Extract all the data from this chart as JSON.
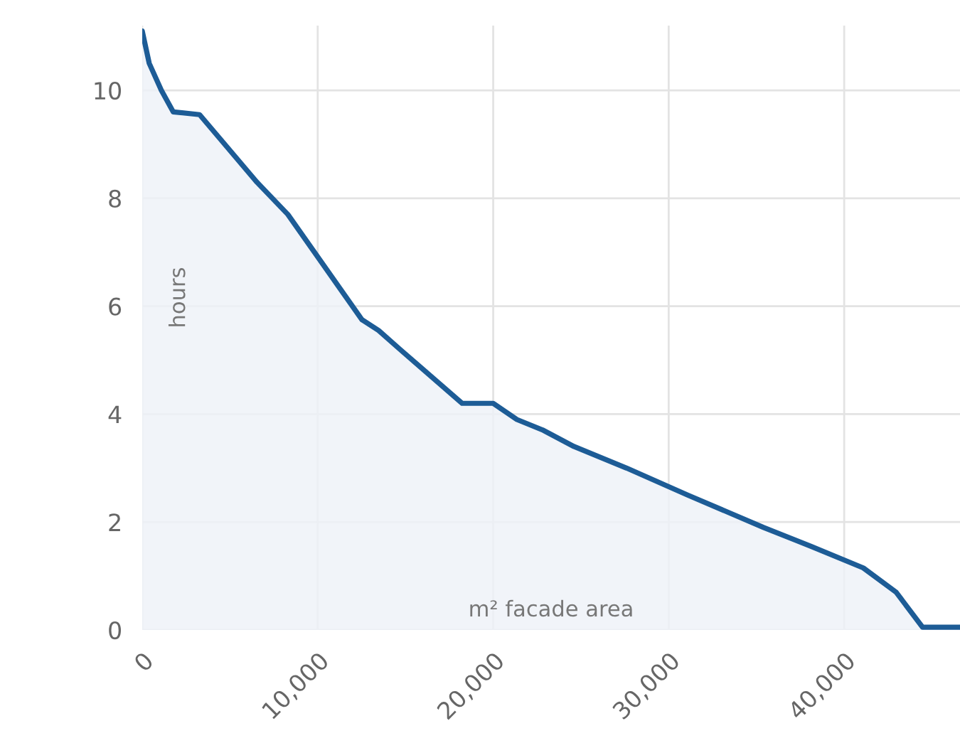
{
  "chart_data": {
    "type": "area",
    "xlabel": "m² facade area",
    "ylabel": "hours",
    "series": [
      {
        "color": "#1d5c96",
        "x": [
          0,
          400,
          1090,
          1770,
          3270,
          6530,
          8300,
          12520,
          13470,
          14690,
          18230,
          20000,
          21350,
          22860,
          24600,
          27600,
          31080,
          35410,
          38110,
          41090,
          42960,
          44470,
          46600
        ],
        "values": [
          11.1,
          10.5,
          10.0,
          9.6,
          9.55,
          8.3,
          7.7,
          5.75,
          5.55,
          5.2,
          4.2,
          4.2,
          3.9,
          3.7,
          3.4,
          3.0,
          2.5,
          1.9,
          1.55,
          1.15,
          0.7,
          0.05,
          0.05
        ]
      }
    ],
    "xlim": [
      0,
      46600
    ],
    "ylim": [
      0,
      11.2
    ],
    "xticks": [
      0,
      {
        "value": 10000,
        "label": "10,000"
      },
      {
        "value": 20000,
        "label": "20,000"
      },
      {
        "value": 30000,
        "label": "30,000"
      },
      {
        "value": 40000,
        "label": "40,000"
      }
    ],
    "yticks": [
      0,
      2,
      4,
      6,
      8,
      10
    ],
    "grid": true,
    "legend": false
  }
}
